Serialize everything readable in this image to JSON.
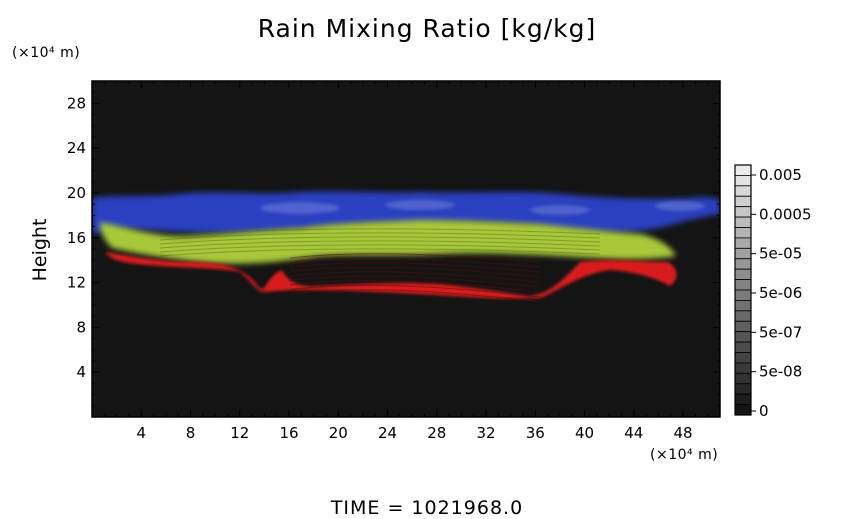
{
  "chart_data": {
    "type": "heatmap",
    "title": "Rain Mixing Ratio [kg/kg]",
    "ylabel": "Height",
    "y_unit": "(×10⁴ m)",
    "x_unit": "(×10⁴ m)",
    "x_ticks": [
      "4",
      "8",
      "12",
      "16",
      "20",
      "24",
      "28",
      "32",
      "36",
      "40",
      "44",
      "48"
    ],
    "y_ticks": [
      "4",
      "8",
      "12",
      "16",
      "20",
      "24",
      "28"
    ],
    "xlim": [
      0,
      51
    ],
    "ylim": [
      0,
      30
    ],
    "colorbar_labels": [
      "0.005",
      "0.0005",
      "5e-05",
      "5e-06",
      "5e-07",
      "5e-08",
      "0"
    ],
    "colors": {
      "background": "#141414",
      "blue_layer": "#2a3fc0",
      "green_layer": "#a8c83a",
      "red_layer": "#d81e1e"
    },
    "time_label": "TIME =  1021968.0"
  }
}
